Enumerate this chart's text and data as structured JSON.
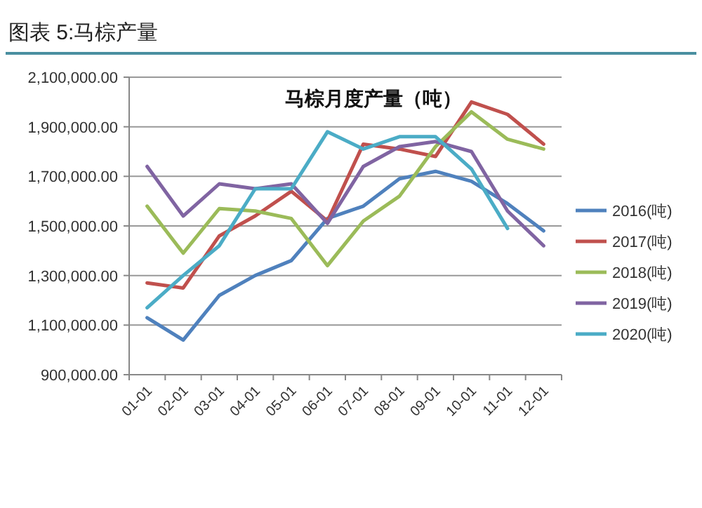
{
  "chart_data": {
    "type": "line",
    "title": "马棕月度产量（吨）",
    "subtitle": "图表 5:马棕产量",
    "categories": [
      "01-01",
      "02-01",
      "03-01",
      "04-01",
      "05-01",
      "06-01",
      "07-01",
      "08-01",
      "09-01",
      "10-01",
      "11-01",
      "12-01"
    ],
    "ylim": [
      900000,
      2100000
    ],
    "yticks": [
      {
        "value": 900000,
        "label": "900,000.00"
      },
      {
        "value": 1100000,
        "label": "1,100,000.00"
      },
      {
        "value": 1300000,
        "label": "1,300,000.00"
      },
      {
        "value": 1500000,
        "label": "1,500,000.00"
      },
      {
        "value": 1700000,
        "label": "1,700,000.00"
      },
      {
        "value": 1900000,
        "label": "1,900,000.00"
      },
      {
        "value": 2100000,
        "label": "2,100,000.00"
      }
    ],
    "grid": "y",
    "legend": "right",
    "marker": "none",
    "line_style": "solid",
    "series": [
      {
        "name": "2016(吨)",
        "color": "#4f81bd",
        "values": [
          1130000,
          1040000,
          1220000,
          1300000,
          1360000,
          1530000,
          1580000,
          1690000,
          1720000,
          1680000,
          1590000,
          1480000
        ]
      },
      {
        "name": "2017(吨)",
        "color": "#c0504d",
        "values": [
          1270000,
          1250000,
          1460000,
          1540000,
          1640000,
          1520000,
          1830000,
          1810000,
          1780000,
          2000000,
          1950000,
          1830000
        ]
      },
      {
        "name": "2018(吨)",
        "color": "#9bbb59",
        "values": [
          1580000,
          1390000,
          1570000,
          1560000,
          1530000,
          1340000,
          1520000,
          1620000,
          1820000,
          1960000,
          1850000,
          1810000
        ]
      },
      {
        "name": "2019(吨)",
        "color": "#8064a2",
        "values": [
          1740000,
          1540000,
          1670000,
          1650000,
          1670000,
          1510000,
          1740000,
          1820000,
          1840000,
          1800000,
          1560000,
          1420000
        ]
      },
      {
        "name": "2020(吨)",
        "color": "#4bacc6",
        "values": [
          1170000,
          1300000,
          1420000,
          1650000,
          1650000,
          1880000,
          1810000,
          1860000,
          1860000,
          1730000,
          1490000,
          null
        ]
      }
    ]
  }
}
